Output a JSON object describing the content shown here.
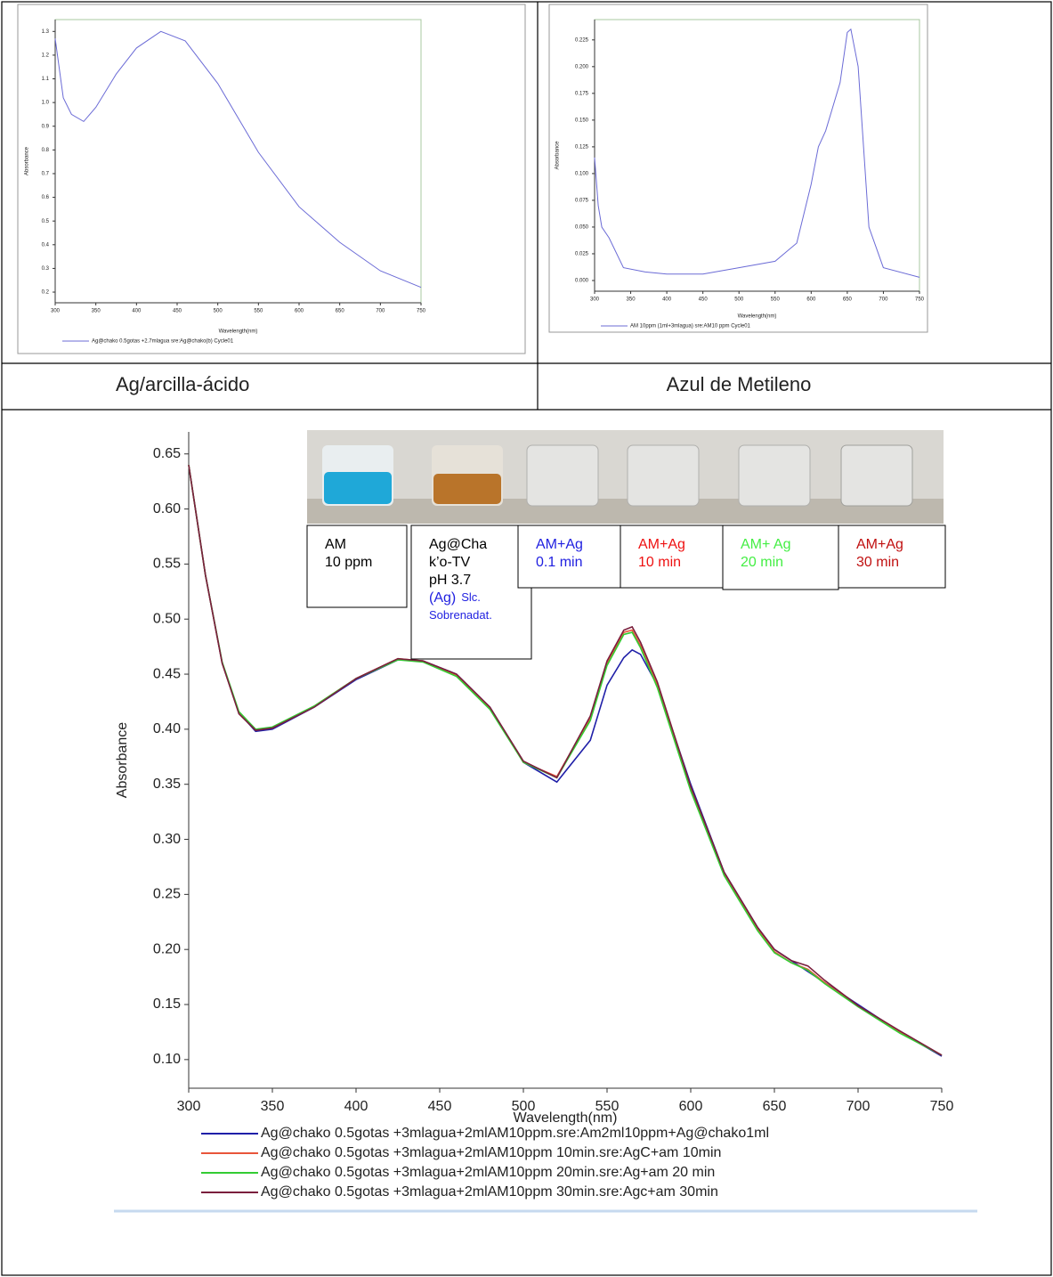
{
  "captions": [
    "Ag/arcilla-ácido",
    "Azul de Metileno"
  ],
  "chart_data": [
    {
      "type": "line",
      "xlabel": "Wavelength(nm)",
      "ylabel": "Absorbance",
      "x": [
        300,
        310,
        320,
        335,
        350,
        375,
        400,
        430,
        460,
        500,
        550,
        600,
        650,
        700,
        750
      ],
      "series": [
        {
          "name": "Ag@chako 0.5gotas +2.7mlagua sre:Ag@chako(b) Cycle01",
          "color": "#6b6bd6",
          "values": [
            1.27,
            1.02,
            0.95,
            0.92,
            0.98,
            1.12,
            1.23,
            1.3,
            1.26,
            1.08,
            0.79,
            0.56,
            0.41,
            0.29,
            0.22
          ]
        }
      ],
      "xlim": [
        300,
        750
      ],
      "xticks": [
        300,
        350,
        400,
        450,
        500,
        550,
        600,
        650,
        700,
        750
      ],
      "ylim": [
        0.155,
        1.35
      ],
      "yticks": [
        0.2,
        0.3,
        0.4,
        0.5,
        0.6,
        0.7,
        0.8,
        0.9,
        {
          "value": 1,
          "label": "1.0"
        },
        1.1,
        1.2,
        1.3
      ]
    },
    {
      "type": "line",
      "xlabel": "Wavelength(nm)",
      "ylabel": "Absorbance",
      "x": [
        300,
        305,
        310,
        320,
        340,
        370,
        400,
        450,
        500,
        550,
        580,
        600,
        610,
        620,
        640,
        650,
        655,
        665,
        680,
        700,
        750
      ],
      "series": [
        {
          "name": "AM 10ppm (1ml+3mlagua) sre:AM10 ppm Cycle01",
          "color": "#6b6bd6",
          "values": [
            0.115,
            0.07,
            0.05,
            0.04,
            0.012,
            0.008,
            0.006,
            0.006,
            0.012,
            0.018,
            0.035,
            0.09,
            0.125,
            0.14,
            0.185,
            0.232,
            0.235,
            0.2,
            0.05,
            0.012,
            0.003
          ]
        }
      ],
      "xlim": [
        300,
        750
      ],
      "xticks": [
        300,
        350,
        400,
        450,
        500,
        550,
        600,
        650,
        700,
        750
      ],
      "ylim": [
        -0.01,
        0.244
      ],
      "yticks": [
        {
          "value": 0,
          "label": "0.000"
        },
        0.025,
        {
          "value": 0.05,
          "label": "0.050"
        },
        0.075,
        {
          "value": 0.1,
          "label": "0.100"
        },
        0.125,
        {
          "value": 0.15,
          "label": "0.150"
        },
        0.175,
        {
          "value": 0.2,
          "label": "0.200"
        },
        0.225
      ]
    },
    {
      "type": "line",
      "xlabel": "Wavelength(nm)",
      "ylabel": "Absorbance",
      "x": [
        300,
        310,
        320,
        330,
        340,
        350,
        375,
        400,
        425,
        440,
        460,
        480,
        500,
        520,
        540,
        550,
        560,
        565,
        570,
        580,
        600,
        620,
        640,
        650,
        660,
        670,
        680,
        700,
        725,
        750
      ],
      "series": [
        {
          "name": "Ag@chako 0.5gotas +3mlagua+2mlAM10ppm.sre:Am2ml10ppm+Ag@chako1ml",
          "color": "#1f1fa8",
          "values": [
            0.64,
            0.54,
            0.46,
            0.415,
            0.398,
            0.4,
            0.42,
            0.445,
            0.463,
            0.462,
            0.45,
            0.42,
            0.37,
            0.352,
            0.39,
            0.44,
            0.465,
            0.472,
            0.468,
            0.44,
            0.35,
            0.27,
            0.22,
            0.2,
            0.19,
            0.18,
            0.17,
            0.15,
            0.125,
            0.103
          ]
        },
        {
          "name": "Ag@chako 0.5gotas +3mlagua+2mlAM10ppm 10min.sre:AgC+am 10min",
          "color": "#e8553a",
          "values": [
            0.64,
            0.54,
            0.46,
            0.415,
            0.4,
            0.401,
            0.421,
            0.446,
            0.464,
            0.462,
            0.449,
            0.419,
            0.37,
            0.357,
            0.41,
            0.46,
            0.488,
            0.49,
            0.476,
            0.44,
            0.345,
            0.268,
            0.218,
            0.198,
            0.188,
            0.182,
            0.17,
            0.148,
            0.125,
            0.104
          ]
        },
        {
          "name": "Ag@chako 0.5gotas +3mlagua+2mlAM10ppm 20min.sre:Ag+am 20 min",
          "color": "#33cc33",
          "values": [
            0.64,
            0.54,
            0.461,
            0.416,
            0.4,
            0.402,
            0.421,
            0.446,
            0.463,
            0.461,
            0.448,
            0.418,
            0.37,
            0.356,
            0.408,
            0.458,
            0.486,
            0.488,
            0.474,
            0.438,
            0.344,
            0.267,
            0.217,
            0.197,
            0.188,
            0.181,
            0.169,
            0.148,
            0.124,
            0.104
          ]
        },
        {
          "name": "Ag@chako 0.5gotas +3mlagua+2mlAM10ppm 30min.sre:Agc+am 30min",
          "color": "#7a1f3d",
          "values": [
            0.64,
            0.54,
            0.46,
            0.414,
            0.399,
            0.401,
            0.42,
            0.446,
            0.464,
            0.462,
            0.45,
            0.42,
            0.371,
            0.356,
            0.412,
            0.462,
            0.49,
            0.493,
            0.479,
            0.443,
            0.348,
            0.27,
            0.22,
            0.2,
            0.19,
            0.185,
            0.172,
            0.149,
            0.126,
            0.104
          ]
        }
      ],
      "xlim": [
        300,
        750
      ],
      "xticks": [
        300,
        350,
        400,
        450,
        500,
        550,
        600,
        650,
        700,
        750
      ],
      "ylim": [
        0.074,
        0.67
      ],
      "yticks": [
        {
          "value": 0.1,
          "label": "0.10"
        },
        0.15,
        {
          "value": 0.2,
          "label": "0.20"
        },
        0.25,
        {
          "value": 0.3,
          "label": "0.30"
        },
        0.35,
        {
          "value": 0.4,
          "label": "0.40"
        },
        0.45,
        {
          "value": 0.5,
          "label": "0.50"
        },
        0.55,
        {
          "value": 0.6,
          "label": "0.60"
        },
        0.65
      ],
      "annotations": [
        {
          "lines": [
            [
              {
                "text": "AM",
                "color": "#000000"
              }
            ],
            [
              {
                "text": "10 ppm",
                "color": "#000000"
              }
            ]
          ]
        },
        {
          "lines": [
            [
              {
                "text": "Ag@Cha",
                "color": "#000000"
              }
            ],
            [
              {
                "text": "k’o-TV",
                "color": "#000000"
              }
            ],
            [
              {
                "text": "pH 3.7",
                "color": "#000000"
              }
            ],
            [
              {
                "text": "(Ag)",
                "color": "#1f1fe0"
              },
              {
                "text": "Slc.",
                "color": "#1f1fe0"
              }
            ],
            [
              {
                "text": "Sobrenadat.",
                "color": "#1f1fe0"
              }
            ]
          ]
        },
        {
          "lines": [
            [
              {
                "text": "AM+Ag",
                "color": "#1f1fe0"
              }
            ],
            [
              {
                "text": "0.1 min",
                "color": "#1f1fe0"
              }
            ]
          ]
        },
        {
          "lines": [
            [
              {
                "text": "AM+Ag",
                "color": "#ee1111"
              }
            ],
            [
              {
                "text": "10 min",
                "color": "#ee1111"
              }
            ]
          ]
        },
        {
          "lines": [
            [
              {
                "text": "AM+ Ag",
                "color": "#44ee44"
              }
            ],
            [
              {
                "text": "20 min",
                "color": "#44ee44"
              }
            ]
          ]
        },
        {
          "lines": [
            [
              {
                "text": "AM+Ag",
                "color": "#c01010"
              }
            ],
            [
              {
                "text": "30 min",
                "color": "#c01010"
              }
            ]
          ]
        }
      ]
    }
  ]
}
